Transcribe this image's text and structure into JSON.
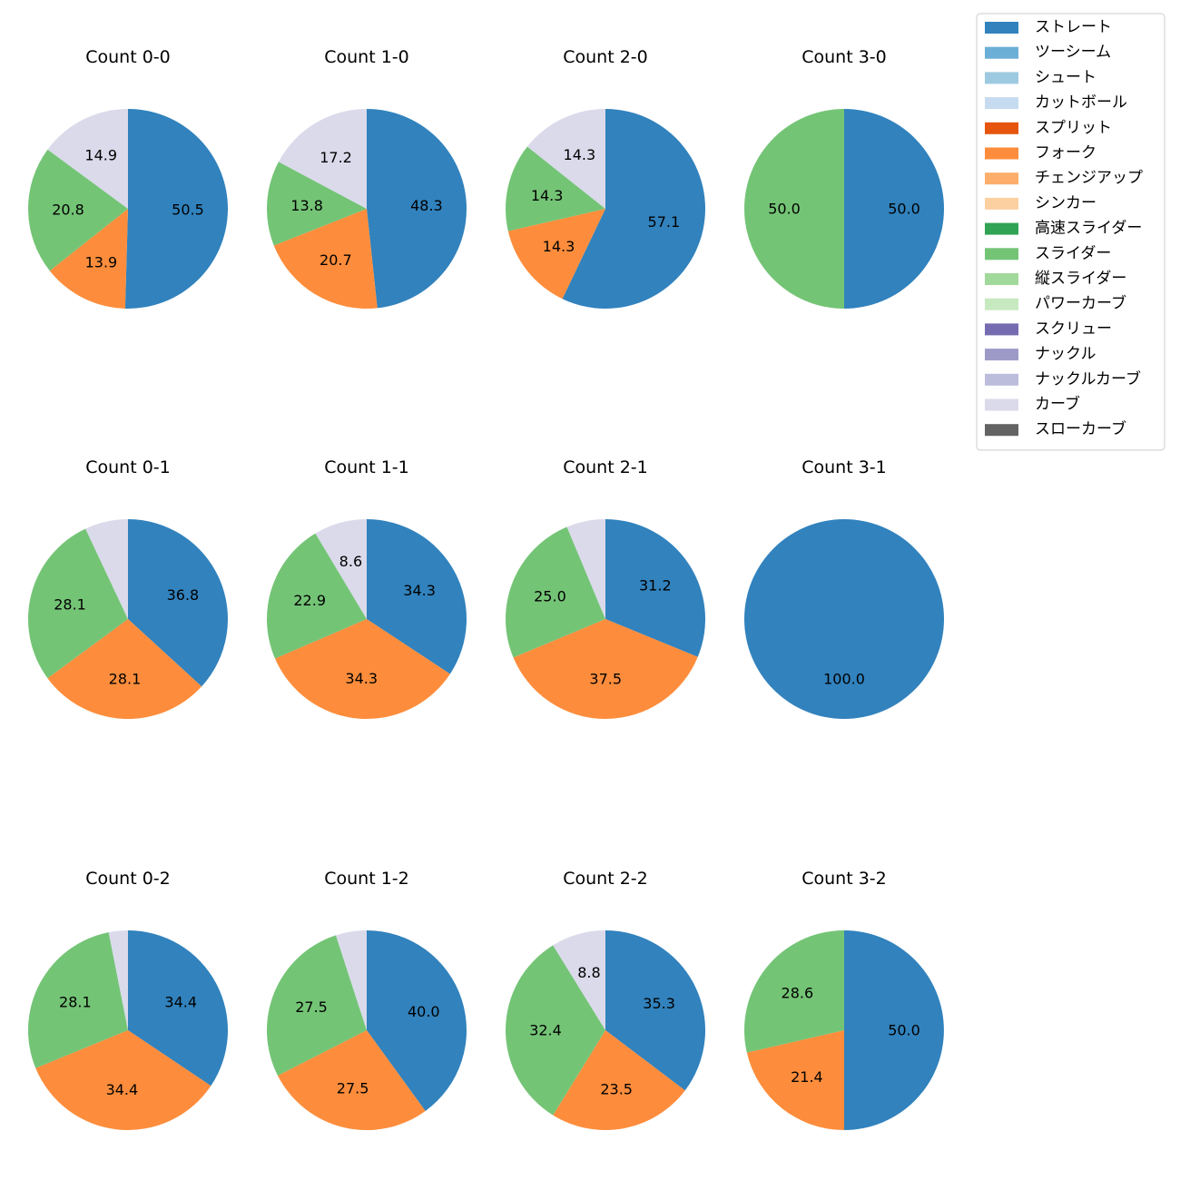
{
  "chart_data": {
    "type": "pie",
    "value_format": "percent (one decimal); labels hidden for small slices",
    "legend": {
      "placement": "top-right",
      "entries": [
        {
          "name": "ストレート",
          "color": "#3182bd"
        },
        {
          "name": "ツーシーム",
          "color": "#6baed6"
        },
        {
          "name": "シュート",
          "color": "#9ecae1"
        },
        {
          "name": "カットボール",
          "color": "#c6dbef"
        },
        {
          "name": "スプリット",
          "color": "#e6550d"
        },
        {
          "name": "フォーク",
          "color": "#fd8d3c"
        },
        {
          "name": "チェンジアップ",
          "color": "#fdae6b"
        },
        {
          "name": "シンカー",
          "color": "#fdd0a2"
        },
        {
          "name": "高速スライダー",
          "color": "#31a354"
        },
        {
          "name": "スライダー",
          "color": "#74c476"
        },
        {
          "name": "縦スライダー",
          "color": "#a1d99b"
        },
        {
          "name": "パワーカーブ",
          "color": "#c7e9c0"
        },
        {
          "name": "スクリュー",
          "color": "#756bb1"
        },
        {
          "name": "ナックル",
          "color": "#9e9ac8"
        },
        {
          "name": "ナックルカーブ",
          "color": "#bcbddc"
        },
        {
          "name": "カーブ",
          "color": "#dadaeb"
        },
        {
          "name": "スローカーブ",
          "color": "#636363"
        }
      ]
    },
    "pies": [
      {
        "title": "Count 0-0",
        "slices": [
          {
            "pitch": "ストレート",
            "value": 50.5,
            "label": "50.5"
          },
          {
            "pitch": "フォーク",
            "value": 13.9,
            "label": "13.9"
          },
          {
            "pitch": "スライダー",
            "value": 20.8,
            "label": "20.8"
          },
          {
            "pitch": "カーブ",
            "value": 14.9,
            "label": "14.9"
          }
        ]
      },
      {
        "title": "Count 1-0",
        "slices": [
          {
            "pitch": "ストレート",
            "value": 48.3,
            "label": "48.3"
          },
          {
            "pitch": "フォーク",
            "value": 20.7,
            "label": "20.7"
          },
          {
            "pitch": "スライダー",
            "value": 13.8,
            "label": "13.8"
          },
          {
            "pitch": "カーブ",
            "value": 17.2,
            "label": "17.2"
          }
        ]
      },
      {
        "title": "Count 2-0",
        "slices": [
          {
            "pitch": "ストレート",
            "value": 57.1,
            "label": "57.1"
          },
          {
            "pitch": "フォーク",
            "value": 14.3,
            "label": "14.3"
          },
          {
            "pitch": "スライダー",
            "value": 14.3,
            "label": "14.3"
          },
          {
            "pitch": "カーブ",
            "value": 14.3,
            "label": "14.3"
          }
        ]
      },
      {
        "title": "Count 3-0",
        "slices": [
          {
            "pitch": "ストレート",
            "value": 50.0,
            "label": "50.0"
          },
          {
            "pitch": "スライダー",
            "value": 50.0,
            "label": "50.0"
          }
        ]
      },
      {
        "title": "Count 0-1",
        "slices": [
          {
            "pitch": "ストレート",
            "value": 36.8,
            "label": "36.8"
          },
          {
            "pitch": "フォーク",
            "value": 28.1,
            "label": "28.1"
          },
          {
            "pitch": "スライダー",
            "value": 28.1,
            "label": "28.1"
          },
          {
            "pitch": "カーブ",
            "value": 7.0,
            "label": ""
          }
        ]
      },
      {
        "title": "Count 1-1",
        "slices": [
          {
            "pitch": "ストレート",
            "value": 34.3,
            "label": "34.3"
          },
          {
            "pitch": "フォーク",
            "value": 34.3,
            "label": "34.3"
          },
          {
            "pitch": "スライダー",
            "value": 22.9,
            "label": "22.9"
          },
          {
            "pitch": "カーブ",
            "value": 8.6,
            "label": "8.6"
          }
        ]
      },
      {
        "title": "Count 2-1",
        "slices": [
          {
            "pitch": "ストレート",
            "value": 31.2,
            "label": "31.2"
          },
          {
            "pitch": "フォーク",
            "value": 37.5,
            "label": "37.5"
          },
          {
            "pitch": "スライダー",
            "value": 25.0,
            "label": "25.0"
          },
          {
            "pitch": "カーブ",
            "value": 6.3,
            "label": ""
          }
        ]
      },
      {
        "title": "Count 3-1",
        "slices": [
          {
            "pitch": "ストレート",
            "value": 100.0,
            "label": "100.0"
          }
        ]
      },
      {
        "title": "Count 0-2",
        "slices": [
          {
            "pitch": "ストレート",
            "value": 34.4,
            "label": "34.4"
          },
          {
            "pitch": "フォーク",
            "value": 34.4,
            "label": "34.4"
          },
          {
            "pitch": "スライダー",
            "value": 28.1,
            "label": "28.1"
          },
          {
            "pitch": "カーブ",
            "value": 3.1,
            "label": ""
          }
        ]
      },
      {
        "title": "Count 1-2",
        "slices": [
          {
            "pitch": "ストレート",
            "value": 40.0,
            "label": "40.0"
          },
          {
            "pitch": "フォーク",
            "value": 27.5,
            "label": "27.5"
          },
          {
            "pitch": "スライダー",
            "value": 27.5,
            "label": "27.5"
          },
          {
            "pitch": "カーブ",
            "value": 5.0,
            "label": ""
          }
        ]
      },
      {
        "title": "Count 2-2",
        "slices": [
          {
            "pitch": "ストレート",
            "value": 35.3,
            "label": "35.3"
          },
          {
            "pitch": "フォーク",
            "value": 23.5,
            "label": "23.5"
          },
          {
            "pitch": "スライダー",
            "value": 32.4,
            "label": "32.4"
          },
          {
            "pitch": "カーブ",
            "value": 8.8,
            "label": "8.8"
          }
        ]
      },
      {
        "title": "Count 3-2",
        "slices": [
          {
            "pitch": "ストレート",
            "value": 50.0,
            "label": "50.0"
          },
          {
            "pitch": "フォーク",
            "value": 21.4,
            "label": "21.4"
          },
          {
            "pitch": "スライダー",
            "value": 28.6,
            "label": "28.6"
          }
        ]
      }
    ]
  }
}
